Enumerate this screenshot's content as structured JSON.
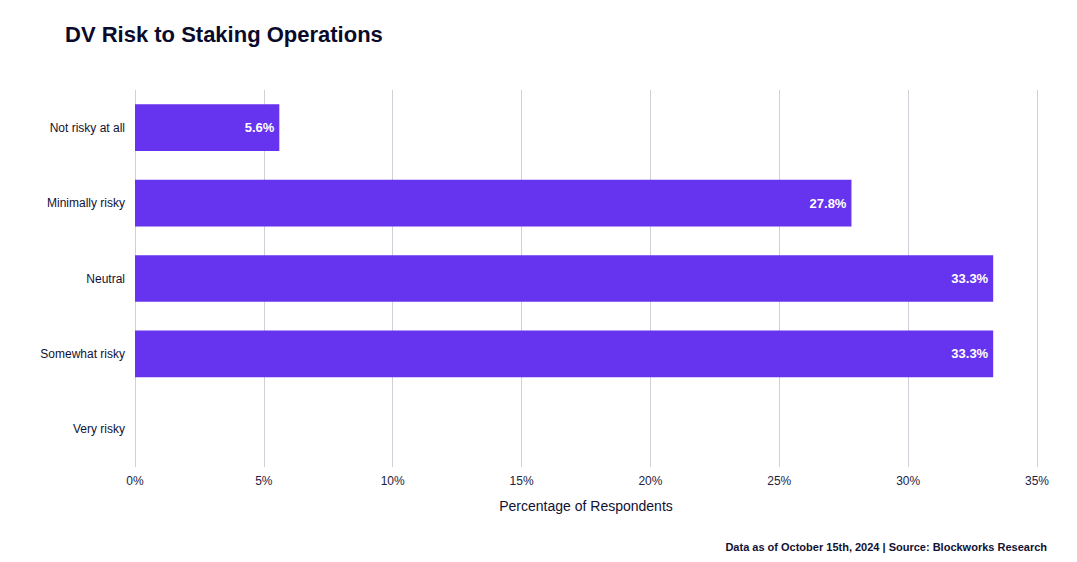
{
  "chart_data": {
    "type": "bar",
    "orientation": "horizontal",
    "title": "DV Risk to Staking Operations",
    "categories": [
      "Very risky",
      "Somewhat risky",
      "Neutral",
      "Minimally risky",
      "Not risky at all"
    ],
    "values": [
      0.0,
      33.3,
      33.3,
      27.8,
      5.6
    ],
    "value_labels": [
      null,
      "33.3%",
      "33.3%",
      "27.8%",
      "5.6%"
    ],
    "data_labels": true,
    "color": "#6633ee",
    "xlabel": "Percentage of Respondents",
    "xlim": [
      0,
      35
    ],
    "xticks": [
      {
        "value": 0,
        "label": "0%"
      },
      {
        "value": 5,
        "label": "5%"
      },
      {
        "value": 10,
        "label": "10%"
      },
      {
        "value": 15,
        "label": "15%"
      },
      {
        "value": 20,
        "label": "20%"
      },
      {
        "value": 25,
        "label": "25%"
      },
      {
        "value": 30,
        "label": "30%"
      },
      {
        "value": 35,
        "label": "35%"
      }
    ],
    "grid": true,
    "annotations": [
      "Blockworks",
      "Research"
    ],
    "footnote": "Data as of October 15th, 2024 | Source: Blockworks Research"
  }
}
